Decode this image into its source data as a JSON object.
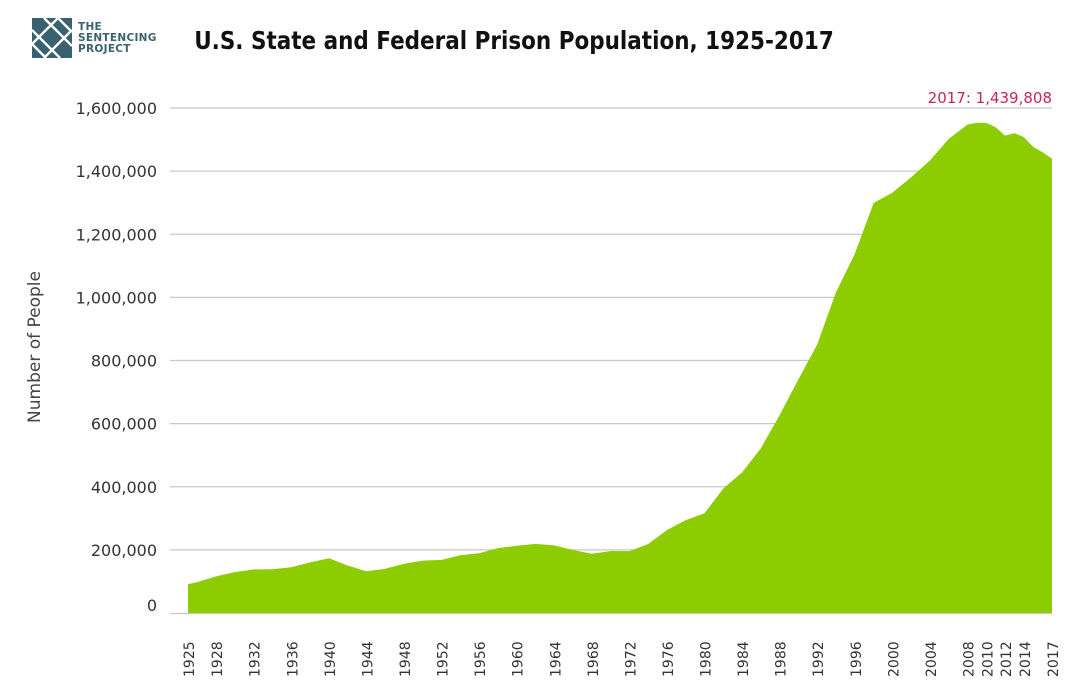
{
  "logo": {
    "line1": "THE",
    "line2": "SENTENCING",
    "line3": "PROJECT"
  },
  "chart_data": {
    "type": "area",
    "title": "U.S. State and Federal Prison Population, 1925-2017",
    "xlabel": "",
    "ylabel": "Number of People",
    "ylim": [
      0,
      1600000
    ],
    "yticks": [
      0,
      200000,
      400000,
      600000,
      800000,
      1000000,
      1200000,
      1400000,
      1600000
    ],
    "ytick_labels": [
      "0",
      "200,000",
      "400,000",
      "600,000",
      "800,000",
      "1,000,000",
      "1,200,000",
      "1,400,000",
      "1,600,000"
    ],
    "xtick_labels": [
      "1925",
      "1928",
      "1932",
      "1936",
      "1940",
      "1944",
      "1948",
      "1952",
      "1956",
      "1960",
      "1964",
      "1968",
      "1972",
      "1976",
      "1980",
      "1984",
      "1988",
      "1992",
      "1996",
      "2000",
      "2004",
      "2008",
      "2010",
      "2012",
      "2014",
      "2017"
    ],
    "grid": true,
    "color": "#8dcc00",
    "annotation": {
      "text": "2017: 1,439,808",
      "color": "#c8245a"
    },
    "x": [
      "1925",
      "1926",
      "1928",
      "1930",
      "1932",
      "1934",
      "1936",
      "1938",
      "1940",
      "1942",
      "1944",
      "1946",
      "1948",
      "1950",
      "1952",
      "1954",
      "1956",
      "1958",
      "1960",
      "1962",
      "1964",
      "1966",
      "1968",
      "1970",
      "1972",
      "1974",
      "1976",
      "1978",
      "1980",
      "1982",
      "1984",
      "1986",
      "1988",
      "1990",
      "1992",
      "1994",
      "1996",
      "1998",
      "2000",
      "2002",
      "2004",
      "2006",
      "2008",
      "2009",
      "2010",
      "2011",
      "2012",
      "2013",
      "2014",
      "2015",
      "2016",
      "2017"
    ],
    "values": [
      91669,
      97991,
      116390,
      129453,
      137997,
      138316,
      145038,
      160285,
      173706,
      150384,
      132456,
      140079,
      155977,
      166123,
      168233,
      182901,
      189565,
      205643,
      212953,
      218830,
      214336,
      199654,
      187914,
      196429,
      196092,
      218466,
      262833,
      294396,
      315974,
      394374,
      445381,
      522084,
      627402,
      739980,
      850566,
      1016760,
      1137722,
      1299096,
      1331278,
      1380516,
      1433728,
      1502179,
      1547742,
      1553574,
      1552669,
      1538847,
      1512430,
      1520403,
      1507781,
      1476847,
      1459948,
      1439808
    ]
  }
}
